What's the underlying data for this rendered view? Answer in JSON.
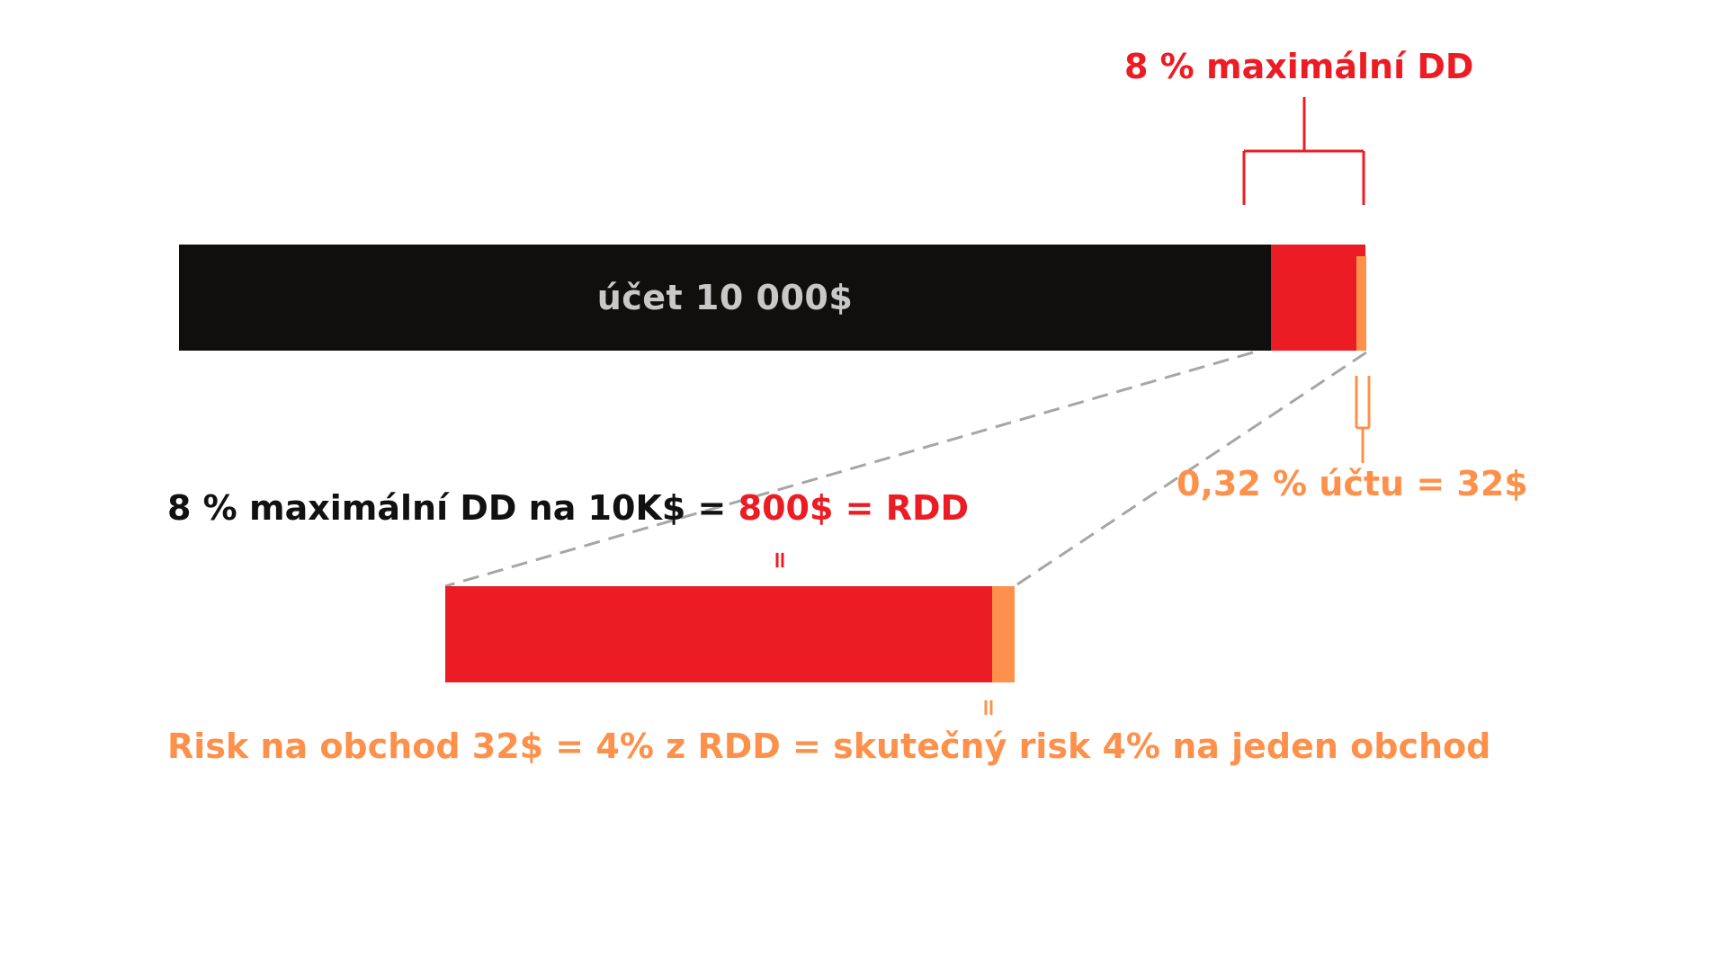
{
  "account_bar": {
    "label": "účet 10 000$"
  },
  "max_dd": {
    "label": "8 % maximální DD"
  },
  "per_trade": {
    "label": "0,32 % účtu = 32$"
  },
  "equation": {
    "black_part": "8 % maximální DD na 10K$ = ",
    "red_part": "800$ = RDD"
  },
  "equals_sign": "=",
  "bottom": {
    "statement": "Risk na obchod 32$ = 4% z RDD = skutečný risk 4% na jeden obchod"
  },
  "colors": {
    "account": "#110f0e",
    "max_dd": "#ec1c24",
    "risk": "#fd914b",
    "connector": "#a6a6a6"
  }
}
